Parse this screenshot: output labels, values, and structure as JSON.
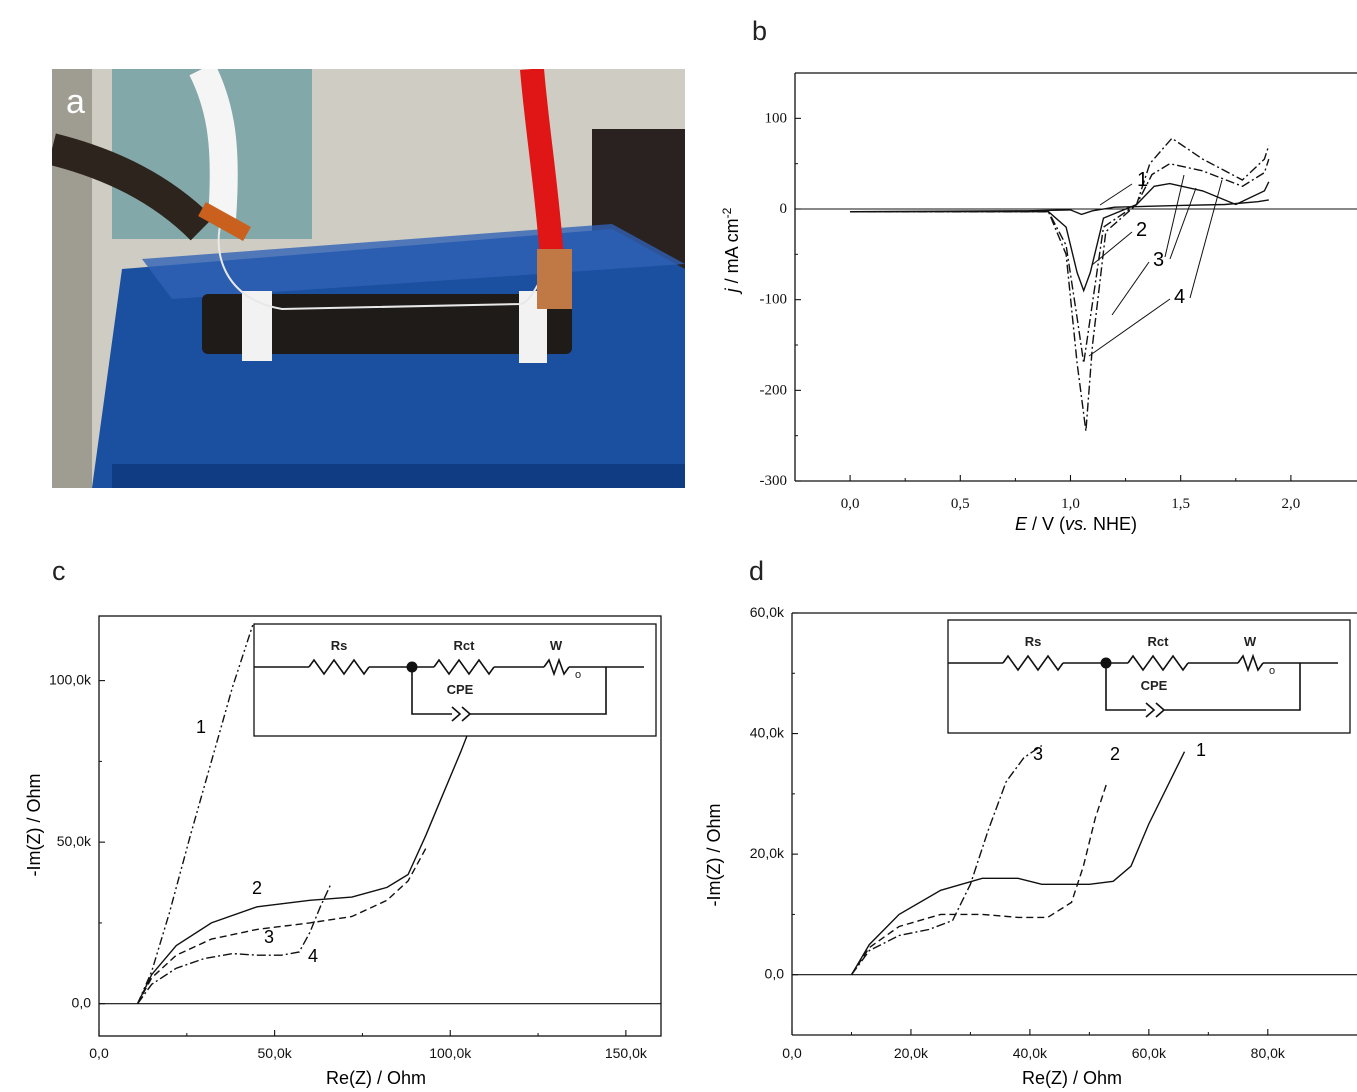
{
  "panels": {
    "a": "a",
    "b": "b",
    "c": "c",
    "d": "d"
  },
  "chart_data": [
    {
      "panel": "b",
      "type": "line",
      "xlabel_italic": "E",
      "xlabel_rest1": " / V (",
      "xlabel_vs": "vs.",
      "xlabel_rest2": " NHE)",
      "ylabel_italic": "j",
      "ylabel_rest": " / mA cm",
      "ylabel_sup": "-2",
      "xlim": [
        -0.25,
        2.3
      ],
      "ylim": [
        -300,
        150
      ],
      "xticks": [
        0.0,
        0.5,
        1.0,
        1.5,
        2.0
      ],
      "xtick_labels": [
        "0,0",
        "0,5",
        "1,0",
        "1,5",
        "2,0"
      ],
      "yticks": [
        -300,
        -200,
        -100,
        0,
        100
      ],
      "ytick_labels": [
        "-300",
        "-200",
        "-100",
        "0",
        "100"
      ],
      "series": [
        {
          "name": "1",
          "style": "solid",
          "x": [
            0.0,
            0.8,
            1.0,
            1.05,
            1.1,
            1.2,
            1.35,
            1.5,
            1.7,
            1.85,
            1.9
          ],
          "y": [
            -3,
            -2,
            -1,
            -6,
            -2,
            2,
            3,
            4,
            5,
            8,
            10
          ]
        },
        {
          "name": "2",
          "style": "solid",
          "x": [
            0.0,
            0.9,
            0.98,
            1.03,
            1.06,
            1.09,
            1.15,
            1.3,
            1.38,
            1.45,
            1.6,
            1.75,
            1.88,
            1.9
          ],
          "y": [
            -3,
            -3,
            -20,
            -70,
            -90,
            -70,
            -10,
            5,
            25,
            28,
            20,
            5,
            20,
            30
          ]
        },
        {
          "name": "3",
          "style": "dashdot",
          "x": [
            0.0,
            0.9,
            0.98,
            1.03,
            1.06,
            1.09,
            1.15,
            1.3,
            1.37,
            1.45,
            1.6,
            1.78,
            1.88,
            1.9
          ],
          "y": [
            -3,
            -3,
            -40,
            -120,
            -170,
            -120,
            -20,
            5,
            38,
            50,
            42,
            25,
            40,
            55
          ]
        },
        {
          "name": "4",
          "style": "dashdot",
          "x": [
            0.0,
            0.9,
            0.98,
            1.03,
            1.07,
            1.1,
            1.16,
            1.3,
            1.36,
            1.46,
            1.6,
            1.78,
            1.88,
            1.9
          ],
          "y": [
            -3,
            -3,
            -50,
            -170,
            -245,
            -150,
            -25,
            5,
            50,
            78,
            55,
            32,
            55,
            70
          ]
        }
      ],
      "annotations": [
        "1",
        "2",
        "3",
        "4"
      ]
    },
    {
      "panel": "c",
      "type": "line",
      "xlabel": "Re(Z) / Ohm",
      "ylabel": "-Im(Z) / Ohm",
      "xlim": [
        0,
        160000
      ],
      "ylim": [
        -10000,
        120000
      ],
      "xticks": [
        0,
        50000,
        100000,
        150000
      ],
      "xtick_labels": [
        "0,0",
        "50,0k",
        "100,0k",
        "150,0k"
      ],
      "yticks": [
        0,
        50000,
        100000
      ],
      "ytick_labels": [
        "0,0",
        "50,0k",
        "100,0k"
      ],
      "series": [
        {
          "name": "1",
          "style": "dashdotdot",
          "x": [
            11000,
            15000,
            20000,
            26000,
            32000,
            38000,
            44000
          ],
          "y": [
            0,
            10000,
            28000,
            52000,
            75000,
            98000,
            118000
          ]
        },
        {
          "name": "2",
          "style": "solid",
          "x": [
            11000,
            15000,
            22000,
            32000,
            45000,
            60000,
            72000,
            82000,
            88000,
            93000,
            98000,
            103000,
            108000
          ],
          "y": [
            0,
            9000,
            18000,
            25000,
            30000,
            32000,
            33000,
            36000,
            40000,
            52000,
            65000,
            78000,
            92000
          ]
        },
        {
          "name": "3",
          "style": "dashed",
          "x": [
            11000,
            15000,
            22000,
            32000,
            45000,
            60000,
            72000,
            82000,
            88000,
            93000
          ],
          "y": [
            0,
            8000,
            15000,
            20000,
            23000,
            25000,
            27000,
            32000,
            38000,
            48000
          ]
        },
        {
          "name": "4",
          "style": "dashdot",
          "x": [
            11000,
            15000,
            22000,
            30000,
            38000,
            45000,
            52000,
            57000,
            60000,
            63000,
            66000
          ],
          "y": [
            0,
            6000,
            11000,
            14000,
            15500,
            15000,
            15000,
            16000,
            22000,
            30000,
            37000
          ]
        }
      ],
      "annotations": [
        "1",
        "2",
        "3",
        "4"
      ],
      "inset": {
        "labels": [
          "Rs",
          "Rct",
          "W",
          "CPE"
        ],
        "subscript_o": "o"
      }
    },
    {
      "panel": "d",
      "type": "line",
      "xlabel": "Re(Z) / Ohm",
      "ylabel": "-Im(Z) / Ohm",
      "xlim": [
        0,
        95000
      ],
      "ylim": [
        -10000,
        60000
      ],
      "xticks": [
        0,
        20000,
        40000,
        60000,
        80000
      ],
      "xtick_labels": [
        "0,0",
        "20,0k",
        "40,0k",
        "60,0k",
        "80,0k"
      ],
      "yticks": [
        0,
        20000,
        40000,
        60000
      ],
      "ytick_labels": [
        "0,0",
        "20,0k",
        "40,0k",
        "60,0k"
      ],
      "series": [
        {
          "name": "1",
          "style": "solid",
          "x": [
            10000,
            13000,
            18000,
            25000,
            32000,
            38000,
            42000,
            46000,
            50000,
            54000,
            57000,
            60000,
            64000,
            66000
          ],
          "y": [
            0,
            5000,
            10000,
            14000,
            16000,
            16000,
            15000,
            15000,
            15000,
            15500,
            18000,
            25000,
            33000,
            37000
          ]
        },
        {
          "name": "2",
          "style": "dashed",
          "x": [
            10000,
            13000,
            18000,
            25000,
            32000,
            38000,
            43000,
            47000,
            49000,
            51000,
            53000
          ],
          "y": [
            0,
            4500,
            8000,
            10000,
            10000,
            9500,
            9500,
            12000,
            18000,
            26000,
            32000
          ]
        },
        {
          "name": "3",
          "style": "dashdot",
          "x": [
            10000,
            13000,
            18000,
            23000,
            27000,
            30000,
            33000,
            36000,
            39000,
            42000
          ],
          "y": [
            0,
            4000,
            6500,
            7500,
            9000,
            15000,
            24000,
            32000,
            36000,
            38000
          ]
        }
      ],
      "annotations": [
        "3",
        "2",
        "1"
      ],
      "inset": {
        "labels": [
          "Rs",
          "Rct",
          "W",
          "CPE"
        ],
        "subscript_o": "o"
      }
    }
  ]
}
